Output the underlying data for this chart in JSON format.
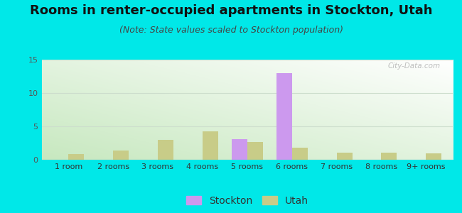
{
  "title": "Rooms in renter-occupied apartments in Stockton, Utah",
  "subtitle": "(Note: State values scaled to Stockton population)",
  "categories": [
    "1 room",
    "2 rooms",
    "3 rooms",
    "4 rooms",
    "5 rooms",
    "6 rooms",
    "7 rooms",
    "8 rooms",
    "9+ rooms"
  ],
  "stockton_values": [
    0,
    0,
    0,
    0,
    3.1,
    13.0,
    0,
    0,
    0
  ],
  "utah_values": [
    0.8,
    1.4,
    3.0,
    4.3,
    2.7,
    1.8,
    1.1,
    1.1,
    1.0
  ],
  "stockton_color": "#cc99ee",
  "utah_color": "#c8cc88",
  "background_color": "#00e8e8",
  "plot_bg_color_top_right": "#ffffff",
  "plot_bg_color_bottom_left": "#c8e8c0",
  "ylim": [
    0,
    15
  ],
  "yticks": [
    0,
    5,
    10,
    15
  ],
  "bar_width": 0.35,
  "title_fontsize": 13,
  "subtitle_fontsize": 9,
  "legend_fontsize": 10,
  "tick_fontsize": 8,
  "watermark": "City-Data.com"
}
